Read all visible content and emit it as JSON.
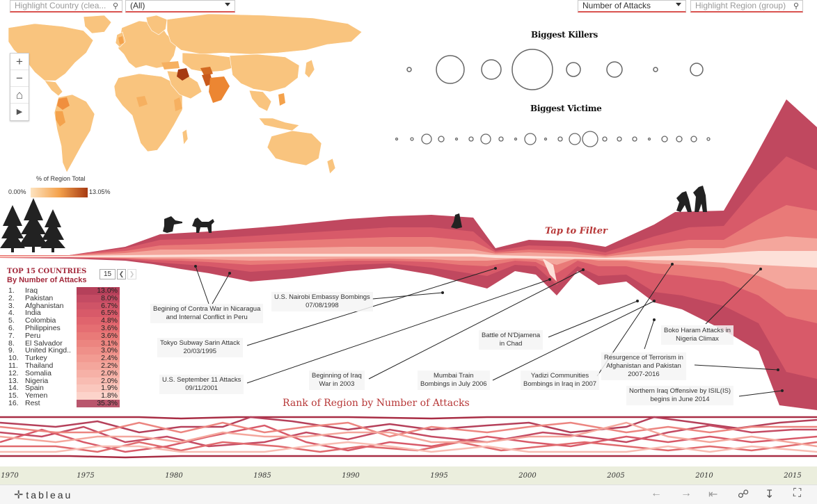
{
  "filters": {
    "highlight_country_placeholder": "Highlight Country (clea...",
    "country_select_value": "(All)",
    "measure_select_value": "Number of Attacks",
    "highlight_region_placeholder": "Highlight Region (group)"
  },
  "map": {
    "zoom_in": "+",
    "zoom_out": "−",
    "home": "⌂",
    "play": "▶",
    "legend_title": "% of Region Total",
    "legend_min": "0.00%",
    "legend_max": "13.05%",
    "colors": {
      "low": "#fde3c0",
      "mid": "#f4a24c",
      "high": "#a63a12"
    }
  },
  "killers": {
    "title": "Biggest Killers"
  },
  "victims": {
    "title": "Biggest Victime"
  },
  "tap_to_filter": "Tap to Filter",
  "top15": {
    "title": "TOP 15  COUNTRIES",
    "subtitle": "By Number of Attacks",
    "page_value": "15",
    "countries": [
      {
        "rank": "1.",
        "name": "Iraq",
        "pct": "13.0%",
        "color": "#b5405a"
      },
      {
        "rank": "2.",
        "name": "Pakistan",
        "pct": "8.0%",
        "color": "#c44b63"
      },
      {
        "rank": "3.",
        "name": "Afghanistan",
        "pct": "6.7%",
        "color": "#cf5467"
      },
      {
        "rank": "4.",
        "name": "India",
        "pct": "6.5%",
        "color": "#d85a69"
      },
      {
        "rank": "5.",
        "name": "Colombia",
        "pct": "4.8%",
        "color": "#e0646d"
      },
      {
        "rank": "6.",
        "name": "Philippines",
        "pct": "3.6%",
        "color": "#e56e72"
      },
      {
        "rank": "7.",
        "name": "Peru",
        "pct": "3.6%",
        "color": "#e97a78"
      },
      {
        "rank": "8.",
        "name": "El Salvador",
        "pct": "3.1%",
        "color": "#ec8580"
      },
      {
        "rank": "9.",
        "name": "United Kingd..",
        "pct": "3.0%",
        "color": "#ef9089"
      },
      {
        "rank": "10.",
        "name": "Turkey",
        "pct": "2.4%",
        "color": "#f29b92"
      },
      {
        "rank": "11.",
        "name": "Thailand",
        "pct": "2.2%",
        "color": "#f4a69c"
      },
      {
        "rank": "12.",
        "name": "Somalia",
        "pct": "2.0%",
        "color": "#f6b1a7"
      },
      {
        "rank": "13.",
        "name": "Nigeria",
        "pct": "2.0%",
        "color": "#f8bcb2"
      },
      {
        "rank": "14.",
        "name": "Spain",
        "pct": "1.9%",
        "color": "#fac7bd"
      },
      {
        "rank": "15.",
        "name": "Yemen",
        "pct": "1.8%",
        "color": "#fcd3ca"
      },
      {
        "rank": "16.",
        "name": "Rest",
        "pct": "35.3%",
        "color": "#b9566d"
      }
    ]
  },
  "annotations": {
    "contra": "Begining of Contra War in Nicaragua\nand Internal Conflict in Peru",
    "nairobi": "U.S. Nairobi Embassy Bombings\n07/08/1998",
    "tokyo": "Tokyo Subway Sarin Attack\n20/03/1995",
    "sept11": "U.S. September 11 Attacks\n09/11/2001",
    "iraq_war": "Beginning of Iraq\nWar in 2003",
    "djamena": "Battle of N'Djamena\nin Chad",
    "mumbai": "Mumbai Train\nBombings in July 2006",
    "yadizi": "Yadizi Communities\nBombings in Iraq in 2007",
    "resurgence": "Resurgence of Terrorism in\nAfghanistan and Pakistan\n2007-2016",
    "boko": "Boko Haram Attacks in\nNigeria Climax",
    "isil": "Northern Iraq Offensive by ISIL(IS)\nbegins in June 2014"
  },
  "rank_title": "Rank of Region by Number of Attacks",
  "years": [
    "1970",
    "1975",
    "1980",
    "1985",
    "1990",
    "1995",
    "2000",
    "2005",
    "2010",
    "2015"
  ],
  "footer": {
    "brand": "tableau",
    "tools": [
      "←",
      "→",
      "|←",
      "share",
      "download",
      "fullscreen"
    ]
  },
  "palette": {
    "dark": "#b5405a",
    "mid": "#e06a6e",
    "light": "#f6b1a7",
    "pale": "#fde0d8"
  }
}
